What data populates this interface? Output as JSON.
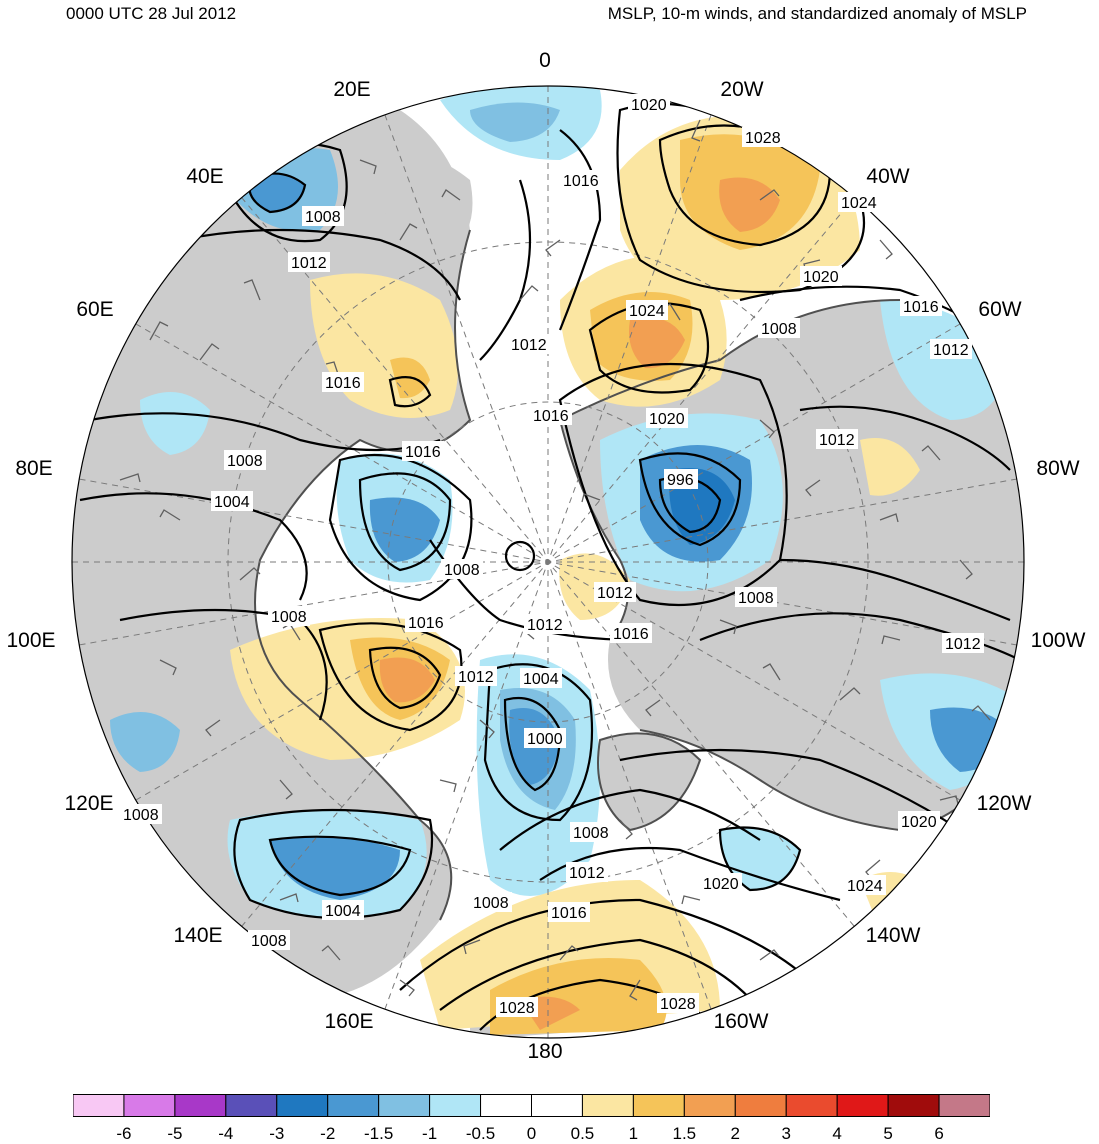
{
  "header": {
    "datetime": "0000 UTC 28 Jul 2012",
    "title": "MSLP, 10-m winds, and standardized anomaly of MSLP"
  },
  "longitude_labels": [
    "0",
    "20W",
    "40W",
    "60W",
    "80W",
    "100W",
    "120W",
    "140W",
    "160W",
    "180",
    "160E",
    "140E",
    "120E",
    "100E",
    "80E",
    "60E",
    "40E",
    "20E"
  ],
  "contour_labels": [
    "1020",
    "1028",
    "1024",
    "1016",
    "1008",
    "1012",
    "1016",
    "1024",
    "1020",
    "1016",
    "1012",
    "1008",
    "1012",
    "1016",
    "1020",
    "996",
    "1012",
    "1008",
    "1012",
    "1016",
    "1012",
    "1016",
    "1008",
    "1008",
    "1004",
    "1012",
    "1004",
    "1000",
    "1008",
    "1012",
    "1016",
    "1008",
    "1020",
    "1020",
    "1024",
    "1028",
    "1028",
    "1016",
    "1012",
    "1008",
    "1004",
    "1008",
    "1008"
  ],
  "colorbar": {
    "colors": [
      "#f8c8f4",
      "#d87ae8",
      "#a838c8",
      "#5a50b8",
      "#1f78c0",
      "#4a98d2",
      "#80c0e2",
      "#b0e6f6",
      "#ffffff",
      "#ffffff",
      "#fbe6a2",
      "#f5c459",
      "#f29f52",
      "#ef7d3e",
      "#ea4b2e",
      "#e01818",
      "#a00c0c",
      "#c47888"
    ],
    "ticks": [
      "-6",
      "-5",
      "-4",
      "-3",
      "-2",
      "-1.5",
      "-1",
      "-0.5",
      "0",
      "0.5",
      "1",
      "1.5",
      "2",
      "3",
      "4",
      "5",
      "6"
    ]
  },
  "map_colors": {
    "land": "#cccccc",
    "coast": "#505050",
    "contour": "#000000",
    "wind_barb": "#606060",
    "grid": "#7a7a7a"
  }
}
